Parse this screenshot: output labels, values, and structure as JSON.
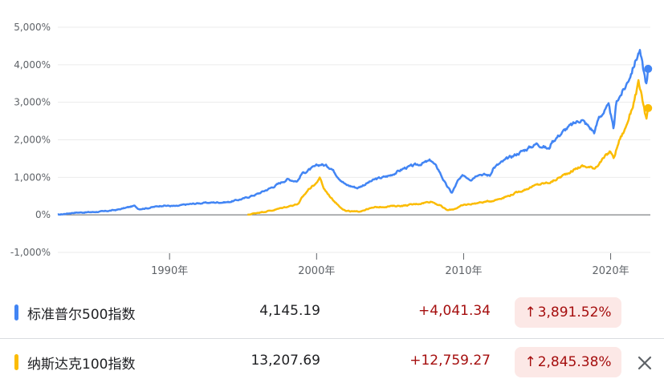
{
  "chart_data": {
    "type": "line",
    "ylabel_format": "percent",
    "ylim": [
      -1000,
      5000
    ],
    "y_ticks": [
      -1000,
      0,
      1000,
      2000,
      3000,
      4000,
      5000
    ],
    "y_tick_labels": [
      "-1,000%",
      "0%",
      "1,000%",
      "2,000%",
      "3,000%",
      "4,000%",
      "5,000%"
    ],
    "xlim": [
      1982.4,
      2022.7
    ],
    "x_ticks": [
      1990,
      2000,
      2010,
      2020
    ],
    "x_tick_labels": [
      "1990年",
      "2000年",
      "2010年",
      "2020年"
    ],
    "grid": true,
    "series": [
      {
        "name": "标准普尔500指数",
        "color": "#4285f4",
        "x": [
          1982.4,
          1983.5,
          1984.5,
          1985.5,
          1986.5,
          1987.6,
          1987.9,
          1988.5,
          1989.5,
          1990.5,
          1991,
          1992,
          1993,
          1994,
          1995,
          1996,
          1997,
          1998,
          1998.7,
          1999,
          1999.5,
          2000,
          2000.3,
          2000.7,
          2001,
          2001.5,
          2002,
          2002.8,
          2003.2,
          2004,
          2005,
          2006,
          2007,
          2007.8,
          2008.3,
          2008.8,
          2009.2,
          2009.6,
          2010,
          2010.5,
          2011,
          2011.8,
          2012,
          2013,
          2014,
          2015,
          2015.8,
          2016,
          2017,
          2018,
          2018.9,
          2019.2,
          2019.9,
          2020.2,
          2020.4,
          2020.6,
          2021,
          2021.5,
          2021.97,
          2022.2,
          2022.45,
          2022.55
        ],
        "values": [
          0,
          60,
          70,
          90,
          140,
          240,
          160,
          180,
          250,
          230,
          270,
          310,
          330,
          340,
          430,
          560,
          740,
          950,
          900,
          1100,
          1200,
          1300,
          1350,
          1300,
          1250,
          1000,
          800,
          720,
          800,
          950,
          1050,
          1250,
          1350,
          1450,
          1200,
          800,
          580,
          900,
          1050,
          950,
          1100,
          1050,
          1250,
          1500,
          1700,
          1900,
          1750,
          1950,
          2300,
          2550,
          2200,
          2600,
          2900,
          2250,
          3050,
          3150,
          3400,
          3900,
          4400,
          3900,
          3450,
          3891.52
        ]
      },
      {
        "name": "纳斯达克100指数",
        "color": "#fbbc04",
        "x": [
          1995.3,
          1996,
          1997,
          1998,
          1998.8,
          1999,
          1999.5,
          2000,
          2000.2,
          2000.5,
          2001,
          2001.5,
          2002,
          2002.8,
          2003.5,
          2004,
          2005,
          2006,
          2007,
          2007.8,
          2008.4,
          2008.9,
          2009.3,
          2010,
          2011,
          2012,
          2013,
          2014,
          2015,
          2016,
          2017,
          2018,
          2018.9,
          2019.4,
          2020,
          2020.2,
          2020.6,
          2021,
          2021.5,
          2021.9,
          2022.2,
          2022.45,
          2022.55
        ],
        "values": [
          0,
          60,
          120,
          220,
          300,
          450,
          700,
          850,
          1000,
          700,
          450,
          250,
          100,
          80,
          160,
          200,
          230,
          250,
          300,
          360,
          250,
          120,
          150,
          260,
          320,
          380,
          500,
          650,
          800,
          880,
          1100,
          1300,
          1250,
          1450,
          1700,
          1500,
          2000,
          2300,
          2900,
          3500,
          3000,
          2500,
          2845.38
        ]
      }
    ],
    "legend": [
      {
        "name": "标准普尔500指数",
        "value": "4,145.19",
        "change": "+4,041.34",
        "percent": "3,891.52%",
        "color": "#4285f4"
      },
      {
        "name": "纳斯达克100指数",
        "value": "13,207.69",
        "change": "+12,759.27",
        "percent": "2,845.38%",
        "color": "#fbbc04"
      }
    ]
  },
  "close_icon": "close-icon"
}
